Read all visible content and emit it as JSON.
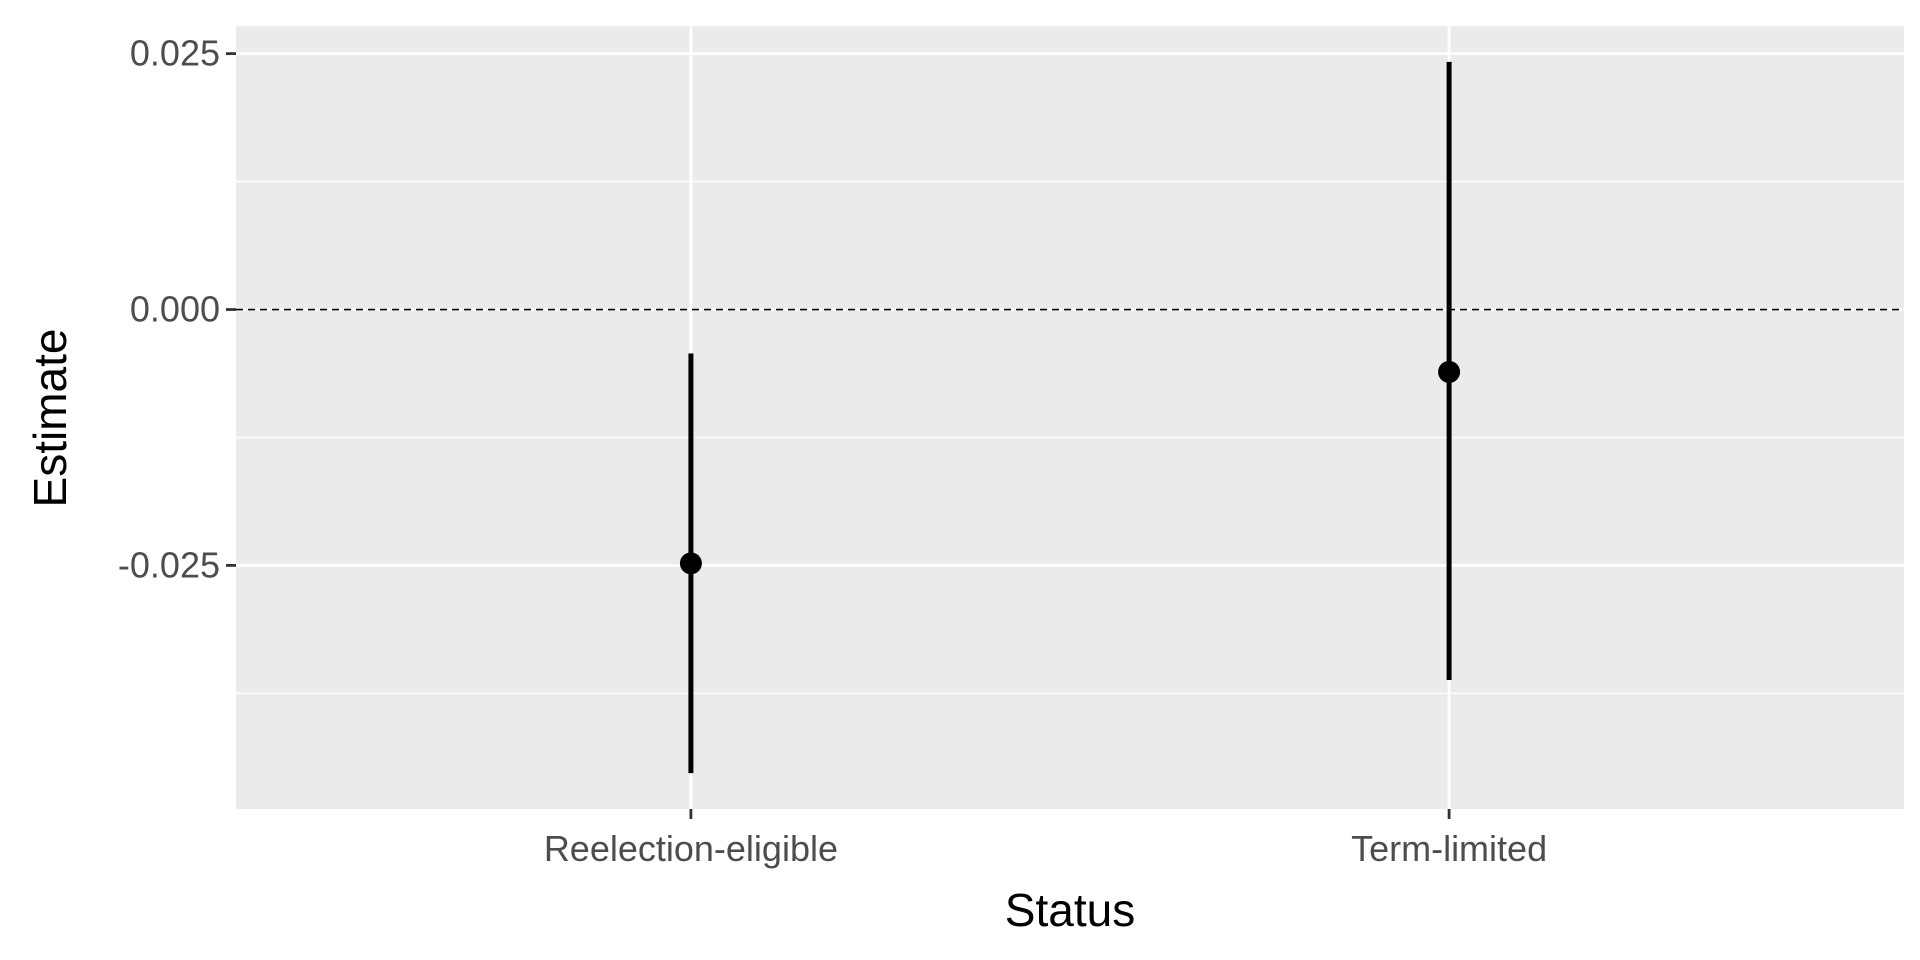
{
  "chart_data": {
    "type": "pointrange",
    "xlabel": "Status",
    "ylabel": "Estimate",
    "categories": [
      "Reelection-eligible",
      "Term-limited"
    ],
    "estimates": [
      -0.0248,
      -0.0061
    ],
    "ci_lower": [
      -0.0453,
      -0.0362
    ],
    "ci_upper": [
      -0.0043,
      0.0242
    ],
    "ylim": [
      -0.0488,
      0.0277
    ],
    "yticks": [
      -0.025,
      0.0,
      0.025
    ],
    "ytick_labels": [
      "-0.025",
      "0.000",
      "0.025"
    ],
    "reference_line": 0.0,
    "reference_line_style": "dashed",
    "grid": true,
    "panel_background": "#ebebeb",
    "gridline_color": "#ffffff",
    "point_color": "#000000"
  }
}
